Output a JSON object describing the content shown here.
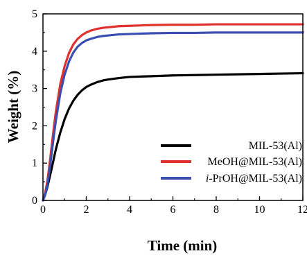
{
  "chart_data": {
    "type": "line",
    "xlabel": "Time (min)",
    "ylabel": "Weight (%)",
    "xlim": [
      0,
      12
    ],
    "ylim": [
      0,
      5
    ],
    "xticks": [
      0,
      2,
      4,
      6,
      8,
      10,
      12
    ],
    "yticks": [
      0,
      1,
      2,
      3,
      4,
      5
    ],
    "grid": false,
    "legend_position": "lower-right",
    "series": [
      {
        "name": "MIL-53(Al)",
        "color": "#000000",
        "x": [
          0,
          0.1,
          0.2,
          0.3,
          0.4,
          0.5,
          0.6,
          0.8,
          1.0,
          1.2,
          1.4,
          1.6,
          1.8,
          2.0,
          2.2,
          2.5,
          2.8,
          3.0,
          3.5,
          4.0,
          4.5,
          5.0,
          6.0,
          7.0,
          8.0,
          9.0,
          10.0,
          11.0,
          12.0
        ],
        "y": [
          0,
          0.15,
          0.35,
          0.6,
          0.85,
          1.12,
          1.38,
          1.82,
          2.18,
          2.46,
          2.67,
          2.83,
          2.95,
          3.04,
          3.1,
          3.17,
          3.22,
          3.24,
          3.28,
          3.31,
          3.32,
          3.33,
          3.35,
          3.36,
          3.37,
          3.38,
          3.39,
          3.4,
          3.41
        ]
      },
      {
        "name": "MeOH@MIL-53(Al)",
        "name_italic": "",
        "name_rest": "MeOH@MIL-53(Al)",
        "color": "#e0312f",
        "x": [
          0,
          0.1,
          0.2,
          0.3,
          0.4,
          0.5,
          0.6,
          0.8,
          1.0,
          1.2,
          1.4,
          1.6,
          1.8,
          2.0,
          2.2,
          2.5,
          2.8,
          3.0,
          3.5,
          4.0,
          4.5,
          5.0,
          6.0,
          7.0,
          8.0,
          9.0,
          10.0,
          11.0,
          12.0
        ],
        "y": [
          0,
          0.2,
          0.5,
          0.95,
          1.45,
          1.95,
          2.4,
          3.12,
          3.6,
          3.95,
          4.18,
          4.33,
          4.43,
          4.5,
          4.55,
          4.6,
          4.63,
          4.64,
          4.67,
          4.68,
          4.69,
          4.7,
          4.71,
          4.71,
          4.72,
          4.72,
          4.72,
          4.72,
          4.72
        ]
      },
      {
        "name": "i-PrOH@MIL-53(Al)",
        "name_italic": "i",
        "name_rest": "-PrOH@MIL-53(Al)",
        "color": "#3a4fb0",
        "x": [
          0,
          0.1,
          0.2,
          0.3,
          0.4,
          0.5,
          0.6,
          0.8,
          1.0,
          1.2,
          1.4,
          1.6,
          1.8,
          2.0,
          2.2,
          2.5,
          2.8,
          3.0,
          3.5,
          4.0,
          4.5,
          5.0,
          6.0,
          7.0,
          8.0,
          9.0,
          10.0,
          11.0,
          12.0
        ],
        "y": [
          0,
          0.15,
          0.4,
          0.8,
          1.25,
          1.72,
          2.15,
          2.87,
          3.37,
          3.72,
          3.96,
          4.12,
          4.22,
          4.29,
          4.33,
          4.38,
          4.41,
          4.42,
          4.45,
          4.46,
          4.47,
          4.48,
          4.49,
          4.49,
          4.5,
          4.5,
          4.5,
          4.5,
          4.5
        ]
      }
    ]
  }
}
